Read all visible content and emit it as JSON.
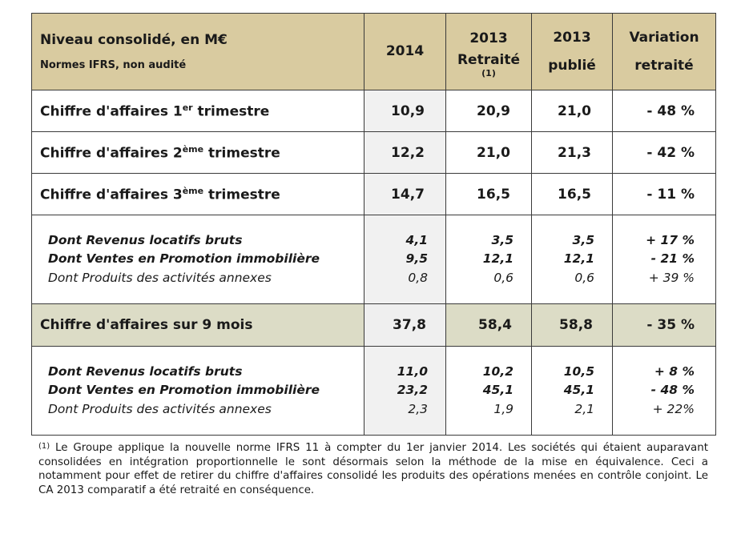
{
  "header": {
    "title": "Niveau consolidé, en M€",
    "subtitle": "Normes IFRS, non audité",
    "col_2014": "2014",
    "col_2013r_year": "2013",
    "col_2013r_label": "Retraité",
    "col_2013r_note": "(1)",
    "col_2013p_year": "2013",
    "col_2013p_label": "publié",
    "col_var_1": "Variation",
    "col_var_2": "retraité"
  },
  "rows": [
    {
      "label_pre": "Chiffre d'affaires 1",
      "sup": "er",
      "label_post": " trimestre",
      "v2014": "10,9",
      "v2013r": "20,9",
      "v2013p": "21,0",
      "var": "- 48 %"
    },
    {
      "label_pre": "Chiffre d'affaires 2",
      "sup": "ème",
      "label_post": " trimestre",
      "v2014": "12,2",
      "v2013r": "21,0",
      "v2013p": "21,3",
      "var": "- 42 %"
    },
    {
      "label_pre": "Chiffre d'affaires 3",
      "sup": "ème",
      "label_post": " trimestre",
      "v2014": "14,7",
      "v2013r": "16,5",
      "v2013p": "16,5",
      "var": "- 11 %"
    }
  ],
  "detail1": [
    {
      "label": "Dont Revenus locatifs bruts",
      "v2014": "4,1",
      "v2013r": "3,5",
      "v2013p": "3,5",
      "var": "+ 17 %"
    },
    {
      "label": "Dont Ventes en Promotion immobilière",
      "v2014": "9,5",
      "v2013r": "12,1",
      "v2013p": "12,1",
      "var": "- 21 %"
    },
    {
      "label": "Dont Produits des activités annexes",
      "v2014": "0,8",
      "v2013r": "0,6",
      "v2013p": "0,6",
      "var": "+ 39 %"
    }
  ],
  "total": {
    "label": "Chiffre d'affaires sur 9 mois",
    "v2014": "37,8",
    "v2013r": "58,4",
    "v2013p": "58,8",
    "var": "- 35 %"
  },
  "detail2": [
    {
      "label": "Dont Revenus locatifs bruts",
      "v2014": "11,0",
      "v2013r": "10,2",
      "v2013p": "10,5",
      "var": "+ 8 %"
    },
    {
      "label": "Dont Ventes en Promotion immobilière",
      "v2014": "23,2",
      "v2013r": "45,1",
      "v2013p": "45,1",
      "var": "- 48 %"
    },
    {
      "label": "Dont Produits des activités annexes",
      "v2014": "2,3",
      "v2013r": "1,9",
      "v2013p": "2,1",
      "var": "+ 22%"
    }
  ],
  "footnote": {
    "mark": "(1)",
    "text": " Le Groupe applique la nouvelle norme IFRS 11 à compter du 1er janvier 2014. Les sociétés qui étaient auparavant consolidées en intégration proportionnelle le sont désormais selon la méthode de la mise en équivalence. Ceci a notamment pour effet de retirer du chiffre d'affaires consolidé les produits des opérations menées en contrôle conjoint. Le CA 2013 comparatif a été retraité en conséquence."
  }
}
